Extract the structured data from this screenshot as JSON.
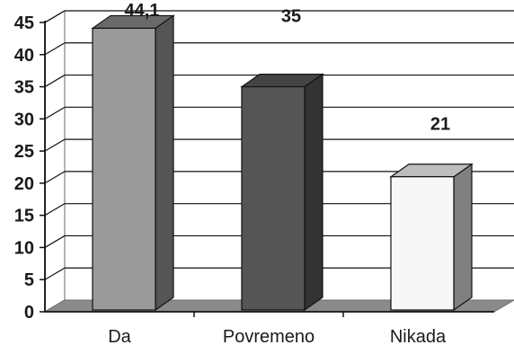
{
  "chart_data": {
    "type": "bar",
    "categories": [
      "Da",
      "Povremeno",
      "Nikada"
    ],
    "values": [
      44.1,
      35,
      21
    ],
    "data_labels": [
      "44,1",
      "35",
      "21"
    ],
    "title": "",
    "xlabel": "",
    "ylabel": "",
    "ylim": [
      0,
      45
    ],
    "yticks": [
      0,
      5,
      10,
      15,
      20,
      25,
      30,
      35,
      40,
      45
    ],
    "grid": true,
    "legend": "none",
    "three_d": true,
    "colors": {
      "bars": [
        {
          "front": "#9a9a9a",
          "side": "#555555",
          "top": "#6a6a6a"
        },
        {
          "front": "#555555",
          "side": "#333333",
          "top": "#444444"
        },
        {
          "front": "#f7f7f7",
          "side": "#808080",
          "top": "#bdbdbd"
        }
      ],
      "floor": "#8a8a8a",
      "grid": "#111111",
      "wall": "#ffffff"
    }
  }
}
